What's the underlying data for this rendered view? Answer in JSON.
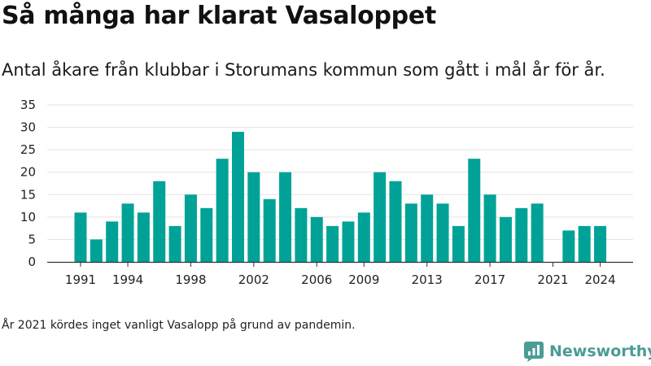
{
  "title": "Så många har klarat Vasaloppet",
  "subtitle": "Antal åkare från klubbar i Storumans kommun som gått i mål år för år.",
  "note": "År 2021 kördes inget vanligt Vasalopp på grund av pandemin.",
  "brand": {
    "name": "Newsworthy",
    "color": "#4a9c94"
  },
  "chart_data": {
    "type": "bar",
    "categories": [
      1991,
      1992,
      1993,
      1994,
      1995,
      1996,
      1997,
      1998,
      1999,
      2000,
      2001,
      2002,
      2003,
      2004,
      2005,
      2006,
      2007,
      2008,
      2009,
      2010,
      2011,
      2012,
      2013,
      2014,
      2015,
      2016,
      2017,
      2018,
      2019,
      2020,
      2021,
      2022,
      2023,
      2024
    ],
    "values": [
      11,
      5,
      9,
      13,
      11,
      18,
      8,
      15,
      12,
      23,
      29,
      20,
      14,
      20,
      12,
      10,
      8,
      9,
      11,
      20,
      18,
      13,
      15,
      13,
      8,
      23,
      15,
      10,
      12,
      13,
      0,
      7,
      8,
      8
    ],
    "x_tick_labels": [
      1991,
      1994,
      1998,
      2002,
      2006,
      2009,
      2013,
      2017,
      2021,
      2024
    ],
    "y_ticks": [
      0,
      5,
      10,
      15,
      20,
      25,
      30,
      35
    ],
    "ylim": [
      0,
      35
    ],
    "bar_color": "#00a297",
    "grid": true
  }
}
